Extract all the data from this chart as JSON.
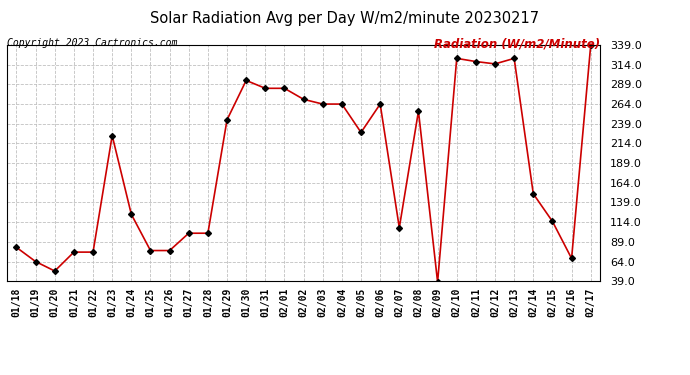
{
  "title": "Solar Radiation Avg per Day W/m2/minute 20230217",
  "copyright": "Copyright 2023 Cartronics.com",
  "legend_label": "Radiation (W/m2/Minute)",
  "dates": [
    "01/18",
    "01/19",
    "01/20",
    "01/21",
    "01/22",
    "01/23",
    "01/24",
    "01/25",
    "01/26",
    "01/27",
    "01/28",
    "01/29",
    "01/30",
    "01/31",
    "02/01",
    "02/02",
    "02/03",
    "02/04",
    "02/05",
    "02/06",
    "02/07",
    "02/08",
    "02/09",
    "02/10",
    "02/11",
    "02/12",
    "02/13",
    "02/14",
    "02/15",
    "02/16",
    "02/17"
  ],
  "values": [
    82,
    64,
    52,
    76,
    76,
    224,
    124,
    78,
    78,
    100,
    100,
    244,
    294,
    284,
    284,
    270,
    264,
    264,
    228,
    264,
    107,
    255,
    38,
    322,
    318,
    315,
    322,
    150,
    115,
    68,
    339
  ],
  "line_color": "#cc0000",
  "marker_color": "#000000",
  "bg_color": "#ffffff",
  "grid_color": "#c0c0c0",
  "title_color": "#000000",
  "copyright_color": "#000000",
  "legend_color": "#cc0000",
  "ylim": [
    39.0,
    339.0
  ],
  "yticks": [
    39.0,
    64.0,
    89.0,
    114.0,
    139.0,
    164.0,
    189.0,
    214.0,
    239.0,
    264.0,
    289.0,
    314.0,
    339.0
  ],
  "fig_width": 6.9,
  "fig_height": 3.75,
  "dpi": 100
}
